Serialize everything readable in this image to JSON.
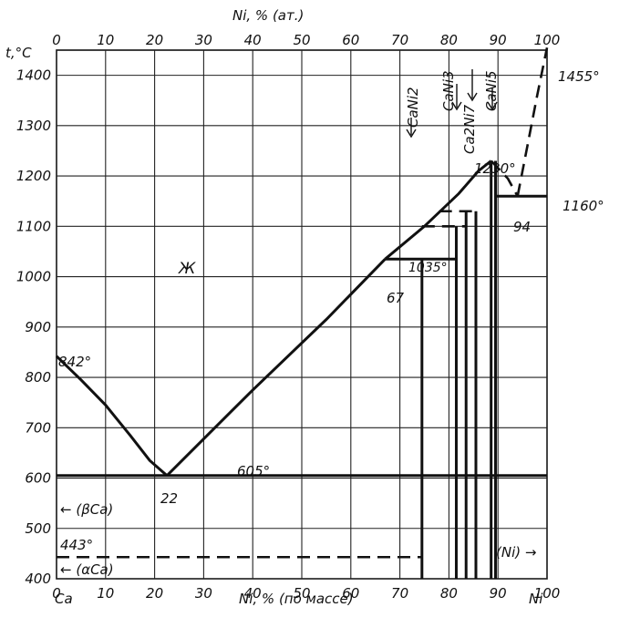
{
  "chart_data": {
    "type": "line",
    "title": "",
    "top_axis_label": "Ni, % (ат.)",
    "bottom_axis_label": "Ni, % (по массе)",
    "y_axis_label": "t,°C",
    "x_left_element": "Ca",
    "x_right_element": "Ni",
    "xlim": [
      0,
      100
    ],
    "ylim": [
      400,
      1450
    ],
    "bottom_ticks": [
      0,
      10,
      20,
      30,
      40,
      50,
      60,
      70,
      80,
      90,
      100
    ],
    "top_ticks": [
      0,
      10,
      20,
      30,
      40,
      50,
      60,
      70,
      80,
      90,
      100
    ],
    "y_ticks": [
      1400,
      1300,
      1200,
      1100,
      1000,
      900,
      800,
      700,
      600,
      500,
      400
    ],
    "phase_labels": {
      "liquid": "Ж",
      "beta_ca": "← (βCa)",
      "alpha_ca": "← (αCa)",
      "ni_solid": "(Ni) →"
    },
    "compounds": [
      "CaNi2",
      "CaNi3",
      "Ca2Ni7",
      "CaNi5"
    ],
    "temperature_labels": [
      "842°",
      "605°",
      "443°",
      "1035°",
      "1230°",
      "1160°",
      "1455°"
    ],
    "composition_labels": [
      "22",
      "67",
      "94"
    ],
    "series": [
      {
        "name": "",
        "style": "solid",
        "x": [
          0,
          5,
          10,
          15,
          19,
          22.5
        ],
        "y": [
          842,
          795,
          745,
          685,
          635,
          605
        ]
      },
      {
        "name": "",
        "style": "solid",
        "x": [
          22.5,
          40,
          55,
          67
        ],
        "y": [
          605,
          775,
          915,
          1035
        ]
      },
      {
        "name": "",
        "style": "solid",
        "x": [
          67,
          75,
          82,
          86,
          88.6
        ],
        "y": [
          1035,
          1100,
          1165,
          1210,
          1230
        ]
      },
      {
        "name": "",
        "style": "dashed",
        "x": [
          88.6,
          92,
          94
        ],
        "y": [
          1230,
          1195,
          1160
        ]
      },
      {
        "name": "",
        "style": "dashed",
        "x": [
          94,
          96,
          98,
          100
        ],
        "y": [
          1160,
          1260,
          1360,
          1455
        ]
      }
    ],
    "isotherms": [
      {
        "style": "solid",
        "temp": 605,
        "x_from": 0,
        "x_to": 100
      },
      {
        "style": "dashed",
        "temp": 443,
        "x_from": 0,
        "x_to": 74.5
      },
      {
        "style": "solid",
        "temp": 1035,
        "x_from": 67,
        "x_to": 81.5
      },
      {
        "style": "dashed",
        "temp": 1100,
        "x_from": 74.5,
        "x_to": 83.5
      },
      {
        "style": "dashed",
        "temp": 1130,
        "x_from": 78,
        "x_to": 85.5
      },
      {
        "style": "solid",
        "temp": 1160,
        "x_from": 89.5,
        "x_to": 100
      }
    ],
    "grid": true,
    "legend": "none"
  }
}
